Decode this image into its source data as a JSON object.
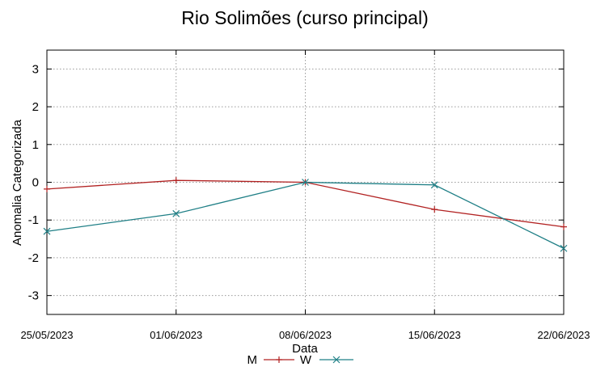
{
  "chart_data": {
    "type": "line",
    "title": "Rio Solimões (curso principal)",
    "xlabel": "Data",
    "ylabel": "Anomalia Categorizada",
    "x": [
      "25/05/2023",
      "01/06/2023",
      "08/06/2023",
      "15/06/2023",
      "22/06/2023"
    ],
    "xticks": [
      "25/05/2023",
      "01/06/2023",
      "08/06/2023",
      "15/06/2023",
      "22/06/2023"
    ],
    "yticks": [
      3,
      2,
      1,
      0,
      -1,
      -2,
      -3
    ],
    "ylim": [
      -3.5,
      3.5
    ],
    "grid": true,
    "legend_position": "bottom-center",
    "series": [
      {
        "name": "M",
        "color": "#b22222",
        "marker": "plus",
        "values": [
          -0.18,
          0.05,
          0.0,
          -0.72,
          -1.18
        ]
      },
      {
        "name": "W",
        "color": "#1f7f86",
        "marker": "x",
        "values": [
          -1.3,
          -0.83,
          0.0,
          -0.07,
          -1.75
        ]
      }
    ]
  }
}
